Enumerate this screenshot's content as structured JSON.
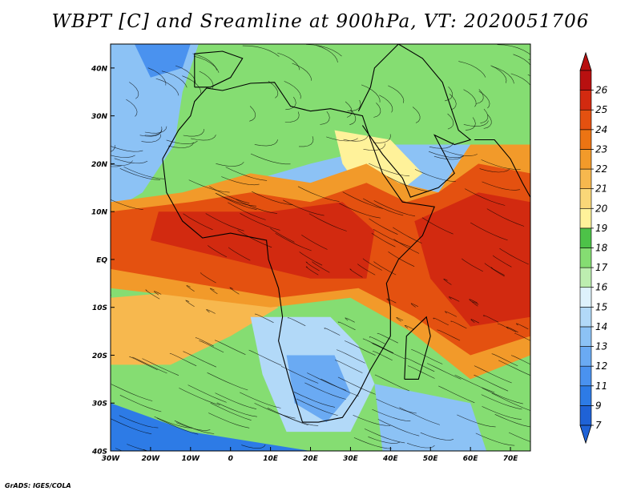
{
  "title": "WBPT [C] and Sreamline at 900hPa, VT: 2020051706",
  "credit": "GrADS: IGES/COLA",
  "map": {
    "lat_ticks": [
      {
        "value": 40,
        "label": "40N"
      },
      {
        "value": 30,
        "label": "30N"
      },
      {
        "value": 20,
        "label": "20N"
      },
      {
        "value": 10,
        "label": "10N"
      },
      {
        "value": 0,
        "label": "EQ"
      },
      {
        "value": -10,
        "label": "10S"
      },
      {
        "value": -20,
        "label": "20S"
      },
      {
        "value": -30,
        "label": "30S"
      },
      {
        "value": -40,
        "label": "40S"
      }
    ],
    "lon_ticks": [
      {
        "value": -30,
        "label": "30W"
      },
      {
        "value": -20,
        "label": "20W"
      },
      {
        "value": -10,
        "label": "10W"
      },
      {
        "value": 0,
        "label": "0"
      },
      {
        "value": 10,
        "label": "10E"
      },
      {
        "value": 20,
        "label": "20E"
      },
      {
        "value": 30,
        "label": "30E"
      },
      {
        "value": 40,
        "label": "40E"
      },
      {
        "value": 50,
        "label": "50E"
      },
      {
        "value": 60,
        "label": "60E"
      },
      {
        "value": 70,
        "label": "70E"
      }
    ],
    "lon_range": [
      -30,
      75
    ],
    "lat_range": [
      -40,
      45
    ]
  },
  "colorbar": {
    "levels": [
      "7",
      "9",
      "11",
      "12",
      "13",
      "14",
      "15",
      "16",
      "17",
      "18",
      "19",
      "20",
      "21",
      "22",
      "23",
      "24",
      "25",
      "26"
    ],
    "colors": [
      "#1f62d6",
      "#2d7be6",
      "#4a92ef",
      "#6aaaf3",
      "#8cc2f5",
      "#b2d9f8",
      "#def2fc",
      "#bdeeb0",
      "#85dd72",
      "#4dc248",
      "#fff29a",
      "#fad778",
      "#f7b84e",
      "#f29a2a",
      "#ec7413",
      "#e45110",
      "#d22a10",
      "#b81010"
    ]
  }
}
